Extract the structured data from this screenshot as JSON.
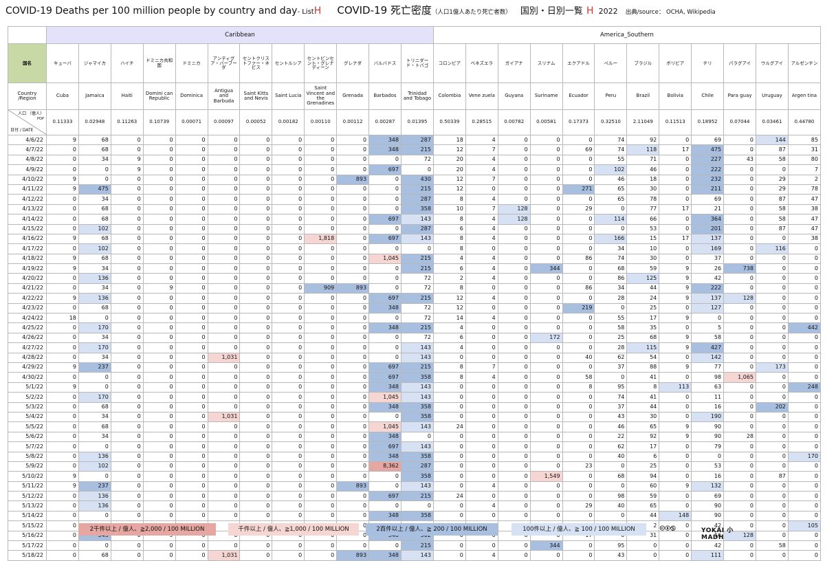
{
  "title": {
    "en": "COVID-19 Deaths per 100 million people by country and day",
    "list": " - List ",
    "list_letter": "H",
    "jp": "COVID-19 死亡密度",
    "jp_sub": "（人口1億人あたり死亡者数）",
    "jp2": "国別・日別一覧",
    "jp2_letter": "H",
    "year": "2022",
    "source": "出典/source： OCHA, Wikipedia"
  },
  "regions": [
    {
      "name": "Caribbean",
      "span": 12
    },
    {
      "name": "America_Southern",
      "span": 12
    }
  ],
  "header_labels": {
    "name_jp": "国名",
    "name_en": "Country\n/Region",
    "pop_top": "人口 （億人）",
    "pop_mid": "POP",
    "pop_unit": "(億人)",
    "pop_date": "日付 / DATE"
  },
  "countries": [
    {
      "jp": "キューバ",
      "en": "Cuba",
      "pop": "0.11333"
    },
    {
      "jp": "ジャマイカ",
      "en": "Jamaica",
      "pop": "0.02948"
    },
    {
      "jp": "ハイチ",
      "en": "Haiti",
      "pop": "0.11263"
    },
    {
      "jp": "ドミニカ共和国",
      "en": "Domini can Republic",
      "pop": "0.10739"
    },
    {
      "jp": "ドミニカ",
      "en": "Dominica",
      "pop": "0.00071"
    },
    {
      "jp": "アンティグア・バーブーダ",
      "en": "Antigua and Barbuda",
      "pop": "0.00097"
    },
    {
      "jp": "セントクリストファー・ネビス",
      "en": "Saint Kitts and Nevis",
      "pop": "0.00052"
    },
    {
      "jp": "セントルシア",
      "en": "Saint Lucia",
      "pop": "0.00182"
    },
    {
      "jp": "セントビンセント・グレナディーン",
      "en": "Saint Vincent and the Grenadines",
      "pop": "0.00110"
    },
    {
      "jp": "グレナダ",
      "en": "Grenada",
      "pop": "0.00112"
    },
    {
      "jp": "バルバドス",
      "en": "Barbados",
      "pop": "0.00287"
    },
    {
      "jp": "トリニダード・トバゴ",
      "en": "Trinidad and Tobago",
      "pop": "0.01395"
    },
    {
      "jp": "コロンビア",
      "en": "Colombia",
      "pop": "0.50339"
    },
    {
      "jp": "ベネズエラ",
      "en": "Vene zuela",
      "pop": "0.28515"
    },
    {
      "jp": "ガイアナ",
      "en": "Guyana",
      "pop": "0.00782"
    },
    {
      "jp": "スリナム",
      "en": "Suriname",
      "pop": "0.00581"
    },
    {
      "jp": "エクアドル",
      "en": "Ecuador",
      "pop": "0.17373"
    },
    {
      "jp": "ペルー",
      "en": "Peru",
      "pop": "0.32510"
    },
    {
      "jp": "ブラジル",
      "en": "Brazil",
      "pop": "2.11049"
    },
    {
      "jp": "ボリビア",
      "en": "Bolivia",
      "pop": "0.11513"
    },
    {
      "jp": "チリ",
      "en": "Chile",
      "pop": "0.18952"
    },
    {
      "jp": "パラグアイ",
      "en": "Para guay",
      "pop": "0.07044"
    },
    {
      "jp": "ウルグアイ",
      "en": "Uruguay",
      "pop": "0.03461"
    },
    {
      "jp": "アルゼンチン",
      "en": "Argen tina",
      "pop": "0.44780"
    }
  ],
  "rows": [
    {
      "date": "4/6/22",
      "v": [
        "9",
        "68",
        "0",
        "0",
        "0",
        "0",
        "0",
        "0",
        "0",
        "0",
        "348",
        "287",
        "18",
        "4",
        "0",
        "0",
        "0",
        "74",
        "92",
        "0",
        "69",
        "0",
        "144",
        "85"
      ]
    },
    {
      "date": "4/7/22",
      "v": [
        "0",
        "68",
        "0",
        "0",
        "0",
        "0",
        "0",
        "0",
        "0",
        "0",
        "348",
        "215",
        "12",
        "7",
        "0",
        "0",
        "69",
        "74",
        "118",
        "17",
        "475",
        "0",
        "87",
        "31"
      ]
    },
    {
      "date": "4/8/22",
      "v": [
        "0",
        "34",
        "9",
        "0",
        "0",
        "0",
        "0",
        "0",
        "0",
        "0",
        "0",
        "72",
        "20",
        "4",
        "0",
        "0",
        "0",
        "55",
        "71",
        "0",
        "227",
        "43",
        "58",
        "80"
      ]
    },
    {
      "date": "4/9/22",
      "v": [
        "0",
        "0",
        "9",
        "0",
        "0",
        "0",
        "0",
        "0",
        "0",
        "0",
        "697",
        "0",
        "20",
        "4",
        "0",
        "0",
        "0",
        "102",
        "46",
        "0",
        "222",
        "0",
        "0",
        "7"
      ]
    },
    {
      "date": "4/10/22",
      "v": [
        "9",
        "0",
        "0",
        "0",
        "0",
        "0",
        "0",
        "0",
        "0",
        "893",
        "0",
        "430",
        "12",
        "7",
        "0",
        "0",
        "0",
        "46",
        "18",
        "0",
        "232",
        "0",
        "29",
        "2"
      ]
    },
    {
      "date": "4/11/22",
      "v": [
        "9",
        "475",
        "0",
        "0",
        "0",
        "0",
        "0",
        "0",
        "0",
        "0",
        "0",
        "215",
        "12",
        "0",
        "0",
        "0",
        "271",
        "65",
        "30",
        "0",
        "211",
        "0",
        "29",
        "78"
      ]
    },
    {
      "date": "4/12/22",
      "v": [
        "0",
        "34",
        "0",
        "0",
        "0",
        "0",
        "0",
        "0",
        "0",
        "0",
        "0",
        "287",
        "8",
        "4",
        "0",
        "0",
        "0",
        "65",
        "78",
        "0",
        "69",
        "0",
        "87",
        "47"
      ]
    },
    {
      "date": "4/13/22",
      "v": [
        "0",
        "68",
        "0",
        "0",
        "0",
        "0",
        "0",
        "0",
        "0",
        "0",
        "0",
        "358",
        "10",
        "7",
        "128",
        "0",
        "29",
        "0",
        "77",
        "17",
        "21",
        "0",
        "58",
        "38"
      ]
    },
    {
      "date": "4/14/22",
      "v": [
        "0",
        "68",
        "0",
        "0",
        "0",
        "0",
        "0",
        "0",
        "0",
        "0",
        "697",
        "143",
        "8",
        "4",
        "128",
        "0",
        "0",
        "114",
        "66",
        "0",
        "364",
        "0",
        "58",
        "47"
      ]
    },
    {
      "date": "4/15/22",
      "v": [
        "0",
        "102",
        "0",
        "0",
        "0",
        "0",
        "0",
        "0",
        "0",
        "0",
        "0",
        "287",
        "6",
        "4",
        "0",
        "0",
        "0",
        "0",
        "53",
        "0",
        "201",
        "0",
        "87",
        "47"
      ]
    },
    {
      "date": "4/16/22",
      "v": [
        "9",
        "68",
        "0",
        "0",
        "0",
        "0",
        "0",
        "0",
        "1,818",
        "0",
        "697",
        "143",
        "8",
        "4",
        "0",
        "0",
        "0",
        "166",
        "15",
        "17",
        "137",
        "0",
        "0",
        "38"
      ]
    },
    {
      "date": "4/17/22",
      "v": [
        "0",
        "102",
        "0",
        "0",
        "0",
        "0",
        "0",
        "0",
        "0",
        "0",
        "0",
        "0",
        "8",
        "0",
        "0",
        "0",
        "0",
        "34",
        "10",
        "0",
        "169",
        "0",
        "116",
        "0"
      ]
    },
    {
      "date": "4/18/22",
      "v": [
        "9",
        "68",
        "0",
        "0",
        "0",
        "0",
        "0",
        "0",
        "0",
        "0",
        "1,045",
        "215",
        "4",
        "4",
        "0",
        "0",
        "86",
        "74",
        "30",
        "0",
        "37",
        "0",
        "0",
        "0"
      ]
    },
    {
      "date": "4/19/22",
      "v": [
        "9",
        "34",
        "0",
        "0",
        "0",
        "0",
        "0",
        "0",
        "0",
        "0",
        "0",
        "215",
        "6",
        "4",
        "0",
        "344",
        "0",
        "68",
        "59",
        "9",
        "26",
        "738",
        "0",
        "0"
      ]
    },
    {
      "date": "4/20/22",
      "v": [
        "0",
        "136",
        "0",
        "0",
        "0",
        "0",
        "0",
        "0",
        "0",
        "0",
        "0",
        "72",
        "2",
        "4",
        "0",
        "0",
        "0",
        "86",
        "125",
        "9",
        "42",
        "0",
        "0",
        "0"
      ]
    },
    {
      "date": "4/21/22",
      "v": [
        "0",
        "34",
        "0",
        "9",
        "0",
        "0",
        "0",
        "0",
        "909",
        "893",
        "0",
        "72",
        "8",
        "0",
        "0",
        "0",
        "86",
        "34",
        "44",
        "9",
        "222",
        "0",
        "0",
        "0"
      ]
    },
    {
      "date": "4/22/22",
      "v": [
        "9",
        "136",
        "0",
        "0",
        "0",
        "0",
        "0",
        "0",
        "0",
        "0",
        "697",
        "215",
        "12",
        "4",
        "0",
        "0",
        "0",
        "28",
        "24",
        "9",
        "137",
        "128",
        "0",
        "0"
      ]
    },
    {
      "date": "4/23/22",
      "v": [
        "0",
        "68",
        "0",
        "0",
        "0",
        "0",
        "0",
        "0",
        "0",
        "0",
        "348",
        "72",
        "12",
        "0",
        "0",
        "0",
        "219",
        "0",
        "25",
        "0",
        "127",
        "0",
        "0",
        "0"
      ]
    },
    {
      "date": "4/24/22",
      "v": [
        "18",
        "0",
        "0",
        "0",
        "0",
        "0",
        "0",
        "0",
        "0",
        "0",
        "0",
        "72",
        "14",
        "4",
        "0",
        "0",
        "0",
        "55",
        "17",
        "9",
        "0",
        "0",
        "0",
        "0"
      ]
    },
    {
      "date": "4/25/22",
      "v": [
        "0",
        "170",
        "0",
        "0",
        "0",
        "0",
        "0",
        "0",
        "0",
        "0",
        "348",
        "215",
        "4",
        "0",
        "0",
        "0",
        "0",
        "58",
        "35",
        "0",
        "5",
        "0",
        "0",
        "442"
      ]
    },
    {
      "date": "4/26/22",
      "v": [
        "0",
        "34",
        "0",
        "0",
        "0",
        "0",
        "0",
        "0",
        "0",
        "0",
        "0",
        "72",
        "6",
        "0",
        "0",
        "172",
        "0",
        "25",
        "68",
        "9",
        "58",
        "0",
        "0",
        "0"
      ]
    },
    {
      "date": "4/27/22",
      "v": [
        "0",
        "170",
        "0",
        "0",
        "0",
        "0",
        "0",
        "0",
        "0",
        "0",
        "0",
        "143",
        "4",
        "0",
        "0",
        "0",
        "0",
        "28",
        "115",
        "9",
        "427",
        "0",
        "0",
        "0"
      ]
    },
    {
      "date": "4/28/22",
      "v": [
        "0",
        "34",
        "0",
        "0",
        "0",
        "1,031",
        "0",
        "0",
        "0",
        "0",
        "0",
        "143",
        "0",
        "0",
        "0",
        "0",
        "40",
        "62",
        "54",
        "0",
        "142",
        "0",
        "0",
        "0"
      ]
    },
    {
      "date": "4/29/22",
      "v": [
        "9",
        "237",
        "0",
        "0",
        "0",
        "0",
        "0",
        "0",
        "0",
        "0",
        "697",
        "215",
        "8",
        "7",
        "0",
        "0",
        "0",
        "37",
        "88",
        "9",
        "77",
        "0",
        "173",
        "0"
      ]
    },
    {
      "date": "4/30/22",
      "v": [
        "0",
        "0",
        "0",
        "0",
        "0",
        "0",
        "0",
        "0",
        "0",
        "0",
        "697",
        "358",
        "8",
        "4",
        "0",
        "0",
        "58",
        "0",
        "41",
        "0",
        "98",
        "1,065",
        "0",
        "0"
      ]
    },
    {
      "date": "5/1/22",
      "v": [
        "9",
        "0",
        "0",
        "0",
        "0",
        "0",
        "0",
        "0",
        "0",
        "0",
        "348",
        "143",
        "0",
        "0",
        "0",
        "0",
        "8",
        "95",
        "8",
        "113",
        "63",
        "0",
        "0",
        "248"
      ]
    },
    {
      "date": "5/2/22",
      "v": [
        "0",
        "170",
        "0",
        "0",
        "0",
        "0",
        "0",
        "0",
        "0",
        "0",
        "1,045",
        "143",
        "0",
        "0",
        "0",
        "0",
        "0",
        "74",
        "41",
        "0",
        "11",
        "0",
        "0",
        "0"
      ]
    },
    {
      "date": "5/3/22",
      "v": [
        "0",
        "68",
        "0",
        "0",
        "0",
        "0",
        "0",
        "0",
        "0",
        "0",
        "348",
        "358",
        "0",
        "0",
        "0",
        "0",
        "0",
        "37",
        "44",
        "0",
        "16",
        "0",
        "202",
        "0"
      ]
    },
    {
      "date": "5/4/22",
      "v": [
        "0",
        "34",
        "0",
        "0",
        "0",
        "1,031",
        "0",
        "0",
        "0",
        "0",
        "0",
        "358",
        "0",
        "0",
        "0",
        "0",
        "0",
        "43",
        "30",
        "0",
        "190",
        "0",
        "0",
        "0"
      ]
    },
    {
      "date": "5/5/22",
      "v": [
        "0",
        "68",
        "0",
        "0",
        "0",
        "0",
        "0",
        "0",
        "0",
        "0",
        "1,045",
        "143",
        "24",
        "0",
        "0",
        "0",
        "0",
        "46",
        "65",
        "9",
        "90",
        "0",
        "0",
        "0"
      ]
    },
    {
      "date": "5/6/22",
      "v": [
        "0",
        "34",
        "0",
        "0",
        "0",
        "0",
        "0",
        "0",
        "0",
        "0",
        "348",
        "0",
        "0",
        "0",
        "0",
        "0",
        "0",
        "22",
        "92",
        "9",
        "90",
        "28",
        "0",
        "0"
      ]
    },
    {
      "date": "5/7/22",
      "v": [
        "0",
        "0",
        "0",
        "0",
        "0",
        "0",
        "0",
        "0",
        "0",
        "0",
        "697",
        "143",
        "0",
        "0",
        "0",
        "0",
        "0",
        "62",
        "17",
        "0",
        "79",
        "0",
        "0",
        "0"
      ]
    },
    {
      "date": "5/8/22",
      "v": [
        "0",
        "136",
        "0",
        "0",
        "0",
        "0",
        "0",
        "0",
        "0",
        "0",
        "348",
        "358",
        "0",
        "0",
        "0",
        "0",
        "0",
        "40",
        "6",
        "0",
        "0",
        "0",
        "0",
        "170"
      ]
    },
    {
      "date": "5/9/22",
      "v": [
        "0",
        "102",
        "0",
        "0",
        "0",
        "0",
        "0",
        "0",
        "0",
        "0",
        "8,362",
        "287",
        "0",
        "0",
        "0",
        "0",
        "23",
        "0",
        "25",
        "0",
        "53",
        "0",
        "0",
        "0"
      ]
    },
    {
      "date": "5/10/22",
      "v": [
        "9",
        "0",
        "0",
        "0",
        "0",
        "0",
        "0",
        "0",
        "0",
        "0",
        "0",
        "358",
        "0",
        "0",
        "0",
        "1,549",
        "0",
        "68",
        "94",
        "0",
        "16",
        "0",
        "87",
        "0"
      ]
    },
    {
      "date": "5/11/22",
      "v": [
        "9",
        "237",
        "0",
        "0",
        "0",
        "0",
        "0",
        "0",
        "0",
        "893",
        "0",
        "143",
        "0",
        "4",
        "0",
        "0",
        "0",
        "0",
        "60",
        "9",
        "132",
        "0",
        "0",
        "0"
      ]
    },
    {
      "date": "5/12/22",
      "v": [
        "0",
        "136",
        "0",
        "0",
        "0",
        "0",
        "0",
        "0",
        "0",
        "0",
        "697",
        "215",
        "24",
        "0",
        "0",
        "0",
        "0",
        "98",
        "59",
        "0",
        "69",
        "0",
        "0",
        "0"
      ]
    },
    {
      "date": "5/13/22",
      "v": [
        "0",
        "136",
        "0",
        "0",
        "0",
        "0",
        "0",
        "0",
        "0",
        "0",
        "0",
        "0",
        "0",
        "4",
        "0",
        "0",
        "29",
        "40",
        "65",
        "0",
        "90",
        "0",
        "0",
        "0"
      ]
    },
    {
      "date": "5/14/22",
      "v": [
        "0",
        "0",
        "0",
        "0",
        "0",
        "0",
        "0",
        "0",
        "0",
        "0",
        "348",
        "358",
        "0",
        "0",
        "0",
        "0",
        "0",
        "0",
        "44",
        "148",
        "90",
        "0",
        "0",
        "0"
      ]
    },
    {
      "date": "5/15/22",
      "v": [
        "0",
        "0",
        "0",
        "0",
        "0",
        "0",
        "0",
        "0",
        "0",
        "0",
        "0",
        "0",
        "0",
        "4",
        "0",
        "0",
        "0",
        "0",
        "2",
        "0",
        "42",
        "0",
        "0",
        "105"
      ]
    },
    {
      "date": "5/16/22",
      "v": [
        "0",
        "543",
        "0",
        "9",
        "0",
        "0",
        "0",
        "0",
        "0",
        "0",
        "348",
        "502",
        "0",
        "0",
        "0",
        "0",
        "17",
        "0",
        "31",
        "0",
        "16",
        "128",
        "0",
        "0"
      ]
    },
    {
      "date": "5/17/22",
      "v": [
        "0",
        "0",
        "0",
        "0",
        "0",
        "0",
        "0",
        "0",
        "0",
        "0",
        "0",
        "215",
        "0",
        "0",
        "0",
        "344",
        "0",
        "95",
        "0",
        "0",
        "42",
        "0",
        "58",
        "0"
      ]
    },
    {
      "date": "5/18/22",
      "v": [
        "0",
        "68",
        "0",
        "0",
        "0",
        "1,031",
        "0",
        "0",
        "0",
        "893",
        "348",
        "143",
        "0",
        "4",
        "0",
        "0",
        "0",
        "43",
        "0",
        "0",
        "111",
        "0",
        "0",
        "0"
      ]
    }
  ],
  "legend": [
    {
      "key": "b2000",
      "label": "2千件以上 / 億人、≧2,000 / 100 MILLION",
      "color": "#e6a6a2"
    },
    {
      "key": "b1000",
      "label": "千件以上 / 億人、≧1,000 / 100 MILLION",
      "color": "#f6d6d2"
    },
    {
      "key": "b200",
      "label": "2百件以上 / 億人、≧ 200 / 100 MILLION",
      "color": "#a9bfe0"
    },
    {
      "key": "b100",
      "label": "100件以上 / 億人、≧ 100 / 100 MILLION",
      "color": "#d6e2f3"
    }
  ],
  "license": "🅭🅯🄏",
  "brand": "YOKAI 小 MADH"
}
